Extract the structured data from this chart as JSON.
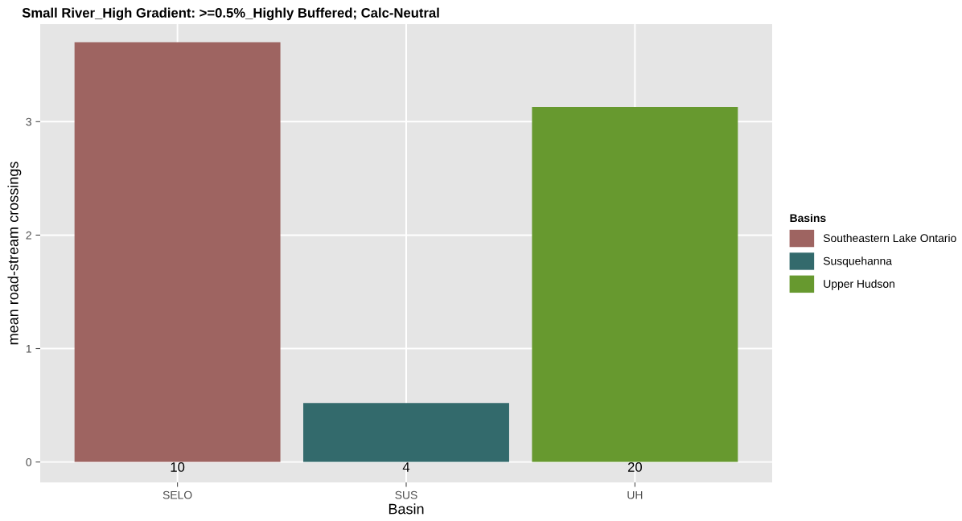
{
  "chart_data": {
    "type": "bar",
    "title": "Small River_High Gradient: >=0.5%_Highly Buffered; Calc-Neutral",
    "xlabel": "Basin",
    "ylabel": "mean road-stream crossings",
    "legend_title": "Basins",
    "categories": [
      "SELO",
      "SUS",
      "UH"
    ],
    "series": [
      {
        "name": "Southeastern Lake Ontario",
        "color": "#9e6461",
        "values": [
          3.7,
          null,
          null
        ]
      },
      {
        "name": "Susquehanna",
        "color": "#336a6c",
        "values": [
          null,
          0.52,
          null
        ]
      },
      {
        "name": "Upper Hudson",
        "color": "#67992f",
        "values": [
          null,
          null,
          3.13
        ]
      }
    ],
    "annotations": [
      {
        "text": "10",
        "x": "SELO",
        "y": 0
      },
      {
        "text": "4",
        "x": "SUS",
        "y": 0
      },
      {
        "text": "20",
        "x": "UH",
        "y": 0
      }
    ],
    "ylim": [
      -0.18,
      3.86
    ],
    "yticks": [
      0,
      1,
      2,
      3
    ],
    "grid": true,
    "legend": "right"
  }
}
